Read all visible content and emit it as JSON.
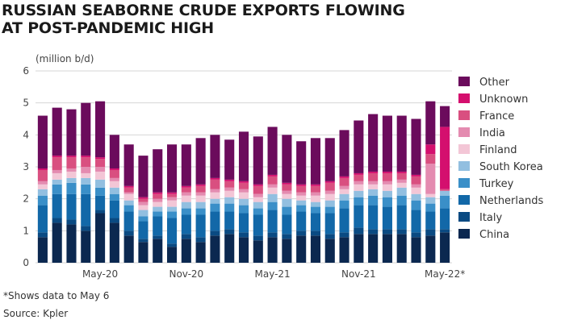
{
  "title_lines": [
    "RUSSIAN SEABORNE CRUDE EXPORTS FLOWING",
    "AT POST-PANDEMIC HIGH"
  ],
  "footnote": "*Shows data to May 6",
  "source": "Source: Kpler",
  "chart_data": {
    "type": "bar",
    "stacked": true,
    "ylabel": "(million b/d)",
    "ylim": [
      0,
      6
    ],
    "yticks": [
      0,
      1,
      2,
      3,
      4,
      5,
      6
    ],
    "grid": true,
    "legend_position": "right",
    "x_tick_labels": [
      {
        "index": 4,
        "label": "May-20"
      },
      {
        "index": 10,
        "label": "Nov-20"
      },
      {
        "index": 16,
        "label": "May-21"
      },
      {
        "index": 22,
        "label": "Nov-21"
      },
      {
        "index": 28,
        "label": "May-22*"
      }
    ],
    "x": [
      "Jan-20",
      "Feb-20",
      "Mar-20",
      "Apr-20",
      "May-20",
      "Jun-20",
      "Jul-20",
      "Aug-20",
      "Sep-20",
      "Oct-20",
      "Nov-20",
      "Dec-20",
      "Jan-21",
      "Feb-21",
      "Mar-21",
      "Apr-21",
      "May-21",
      "Jun-21",
      "Jul-21",
      "Aug-21",
      "Sep-21",
      "Oct-21",
      "Nov-21",
      "Dec-21",
      "Jan-22",
      "Feb-22",
      "Mar-22",
      "Apr-22",
      "May-22"
    ],
    "series": [
      {
        "name": "China",
        "color": "#0b2850",
        "values": [
          0.8,
          1.25,
          1.2,
          1.0,
          1.55,
          1.25,
          0.85,
          0.65,
          0.75,
          0.5,
          0.75,
          0.65,
          0.85,
          0.9,
          0.8,
          0.7,
          0.8,
          0.75,
          0.85,
          0.85,
          0.75,
          0.8,
          0.9,
          0.9,
          0.9,
          0.9,
          0.8,
          0.85,
          0.95
        ]
      },
      {
        "name": "Italy",
        "color": "#0a4a82",
        "values": [
          0.15,
          0.15,
          0.15,
          0.15,
          0.1,
          0.15,
          0.15,
          0.1,
          0.1,
          0.1,
          0.15,
          0.15,
          0.15,
          0.15,
          0.15,
          0.15,
          0.15,
          0.15,
          0.15,
          0.15,
          0.15,
          0.15,
          0.2,
          0.15,
          0.15,
          0.15,
          0.15,
          0.2,
          0.1
        ]
      },
      {
        "name": "Netherlands",
        "color": "#1268a8",
        "values": [
          0.85,
          0.75,
          0.8,
          1.0,
          0.45,
          0.55,
          0.6,
          0.55,
          0.6,
          0.8,
          0.6,
          0.7,
          0.6,
          0.55,
          0.6,
          0.65,
          0.7,
          0.6,
          0.6,
          0.55,
          0.65,
          0.75,
          0.7,
          0.75,
          0.7,
          0.75,
          0.7,
          0.55,
          0.65
        ]
      },
      {
        "name": "Turkey",
        "color": "#3a8fc8",
        "values": [
          0.3,
          0.3,
          0.35,
          0.3,
          0.25,
          0.2,
          0.2,
          0.15,
          0.15,
          0.2,
          0.2,
          0.2,
          0.25,
          0.25,
          0.25,
          0.2,
          0.25,
          0.25,
          0.2,
          0.2,
          0.2,
          0.25,
          0.25,
          0.3,
          0.3,
          0.3,
          0.3,
          0.25,
          0.4
        ]
      },
      {
        "name": "South Korea",
        "color": "#92bfe0",
        "values": [
          0.2,
          0.15,
          0.15,
          0.2,
          0.25,
          0.2,
          0.15,
          0.2,
          0.15,
          0.15,
          0.2,
          0.2,
          0.15,
          0.2,
          0.2,
          0.2,
          0.25,
          0.25,
          0.15,
          0.15,
          0.2,
          0.2,
          0.2,
          0.2,
          0.2,
          0.25,
          0.2,
          0.2,
          0.15
        ]
      },
      {
        "name": "Finland",
        "color": "#f3c6d6",
        "values": [
          0.15,
          0.2,
          0.2,
          0.15,
          0.25,
          0.2,
          0.2,
          0.15,
          0.15,
          0.2,
          0.2,
          0.2,
          0.2,
          0.2,
          0.2,
          0.15,
          0.2,
          0.15,
          0.15,
          0.2,
          0.2,
          0.15,
          0.2,
          0.15,
          0.2,
          0.15,
          0.2,
          0.1,
          0.0
        ]
      },
      {
        "name": "India",
        "color": "#e48bb0",
        "values": [
          0.1,
          0.1,
          0.1,
          0.2,
          0.15,
          0.1,
          0.05,
          0.1,
          0.1,
          0.1,
          0.1,
          0.1,
          0.1,
          0.1,
          0.1,
          0.1,
          0.1,
          0.1,
          0.1,
          0.1,
          0.1,
          0.1,
          0.1,
          0.1,
          0.1,
          0.1,
          0.1,
          0.95,
          0.0
        ]
      },
      {
        "name": "France",
        "color": "#d94f80",
        "values": [
          0.35,
          0.4,
          0.35,
          0.3,
          0.25,
          0.25,
          0.15,
          0.1,
          0.15,
          0.1,
          0.15,
          0.2,
          0.3,
          0.2,
          0.2,
          0.25,
          0.25,
          0.2,
          0.2,
          0.2,
          0.25,
          0.25,
          0.2,
          0.25,
          0.25,
          0.2,
          0.25,
          0.3,
          0.05
        ]
      },
      {
        "name": "Unknown",
        "color": "#d40f6e",
        "values": [
          0.05,
          0.05,
          0.05,
          0.05,
          0.05,
          0.05,
          0.05,
          0.05,
          0.05,
          0.05,
          0.05,
          0.05,
          0.05,
          0.05,
          0.05,
          0.05,
          0.05,
          0.05,
          0.05,
          0.05,
          0.05,
          0.05,
          0.05,
          0.05,
          0.05,
          0.05,
          0.05,
          0.3,
          1.95
        ]
      },
      {
        "name": "Other",
        "color": "#6b0b5c",
        "values": [
          1.65,
          1.5,
          1.45,
          1.65,
          1.75,
          1.05,
          1.3,
          1.3,
          1.35,
          1.5,
          1.3,
          1.45,
          1.35,
          1.25,
          1.55,
          1.5,
          1.5,
          1.5,
          1.35,
          1.45,
          1.35,
          1.45,
          1.65,
          1.8,
          1.75,
          1.75,
          1.75,
          1.35,
          0.65
        ]
      }
    ]
  }
}
